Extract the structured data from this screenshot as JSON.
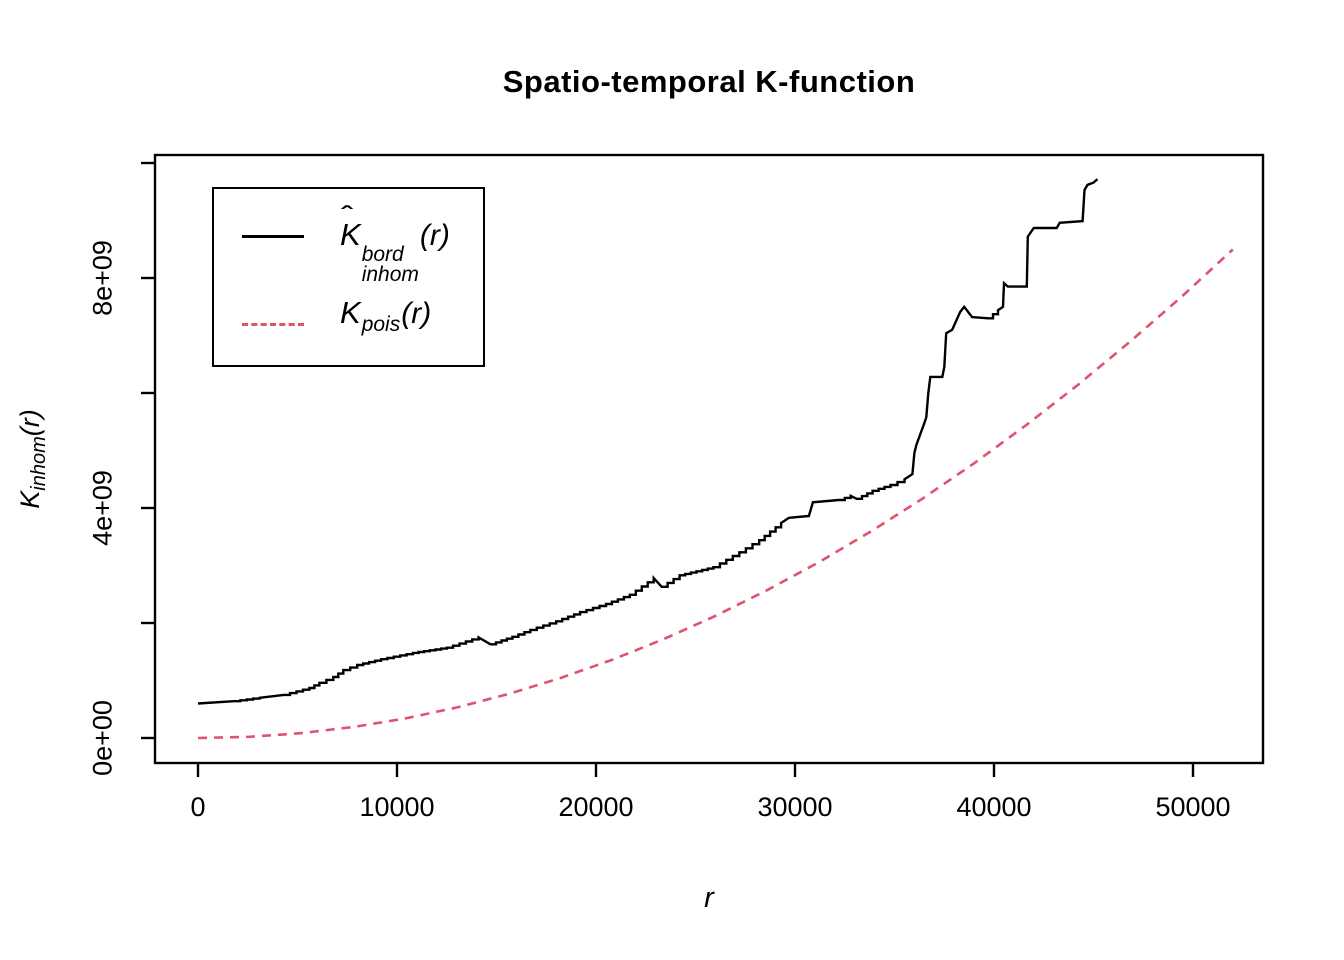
{
  "title": "Spatio-temporal K-function",
  "axes": {
    "x": {
      "label": "r",
      "ticks": [
        {
          "value": 0,
          "label": "0"
        },
        {
          "value": 10000,
          "label": "10000"
        },
        {
          "value": 20000,
          "label": "20000"
        },
        {
          "value": 30000,
          "label": "30000"
        },
        {
          "value": 40000,
          "label": "40000"
        },
        {
          "value": 50000,
          "label": "50000"
        }
      ]
    },
    "y": {
      "label_main": "K",
      "label_sub": "inhom",
      "label_arg": "(r)",
      "ticks": [
        {
          "value": 0,
          "label": "0e+00"
        },
        {
          "value": 2000000000,
          "label": ""
        },
        {
          "value": 4000000000,
          "label": "4e+09"
        },
        {
          "value": 6000000000,
          "label": ""
        },
        {
          "value": 8000000000,
          "label": "8e+09"
        },
        {
          "value": 10000000000,
          "label": ""
        }
      ]
    }
  },
  "legend": {
    "items": [
      {
        "name": "khat-bord-inhom",
        "line": "solid",
        "color": "#000000",
        "hat": "ˆ",
        "main": "K",
        "sup": "bord",
        "sub": "inhom",
        "arg": "(r)"
      },
      {
        "name": "k-pois",
        "line": "dashed",
        "color": "#DF536B",
        "main": "K",
        "sub": "pois",
        "arg": "(r)"
      }
    ]
  },
  "colors": {
    "estimate": "#000000",
    "poisson": "#DF536B",
    "background": "#FFFFFF",
    "axis": "#000000"
  },
  "chart_data": {
    "type": "line",
    "title": "Spatio-temporal K-function",
    "xlabel": "r",
    "ylabel": "K_inhom(r)",
    "xlim": [
      0,
      53500
    ],
    "ylim": [
      -430000000,
      10140000000
    ],
    "grid": false,
    "legend_position": "top-left",
    "x_ticks": [
      0,
      10000,
      20000,
      30000,
      40000,
      50000
    ],
    "y_ticks": [
      0,
      2000000000,
      4000000000,
      6000000000,
      8000000000,
      10000000000
    ],
    "series": [
      {
        "name": "Khat_bord_inhom(r)",
        "style": "step",
        "line": "solid",
        "color": "#000000",
        "r": [
          0,
          1800,
          3100,
          4300,
          5600,
          6100,
          6800,
          7300,
          8000,
          9200,
          10800,
          12500,
          14100,
          14700,
          15800,
          16700,
          18000,
          19200,
          20500,
          21700,
          22900,
          23300,
          24200,
          25900,
          27200,
          28200,
          29300,
          29700,
          30700,
          30900,
          32200,
          32800,
          33100,
          33900,
          34800,
          35500,
          35900,
          36000,
          36100,
          36500,
          36600,
          36700,
          36800,
          37400,
          37500,
          37600,
          37900,
          38300,
          38500,
          38900,
          39700,
          40200,
          40450,
          40500,
          40700,
          41650,
          41700,
          42000,
          43150,
          43300,
          44450,
          44550,
          44700,
          45000,
          45200
        ],
        "K": [
          600000000.0,
          640000000.0,
          700000000.0,
          750000000.0,
          870000000.0,
          960000000.0,
          1060000000.0,
          1180000000.0,
          1270000000.0,
          1370000000.0,
          1480000000.0,
          1570000000.0,
          1750000000.0,
          1630000000.0,
          1760000000.0,
          1880000000.0,
          2030000000.0,
          2190000000.0,
          2330000000.0,
          2490000000.0,
          2780000000.0,
          2630000000.0,
          2830000000.0,
          2970000000.0,
          3230000000.0,
          3440000000.0,
          3740000000.0,
          3830000000.0,
          3860000000.0,
          4100000000.0,
          4140000000.0,
          4210000000.0,
          4160000000.0,
          4300000000.0,
          4400000000.0,
          4500000000.0,
          4590000000.0,
          4960000000.0,
          5100000000.0,
          5480000000.0,
          5580000000.0,
          6000000000.0,
          6280000000.0,
          6280000000.0,
          6450000000.0,
          7040000000.0,
          7100000000.0,
          7410000000.0,
          7500000000.0,
          7320000000.0,
          7300000000.0,
          7440000000.0,
          7500000000.0,
          7910000000.0,
          7850000000.0,
          7850000000.0,
          8720000000.0,
          8870000000.0,
          8870000000.0,
          8960000000.0,
          8990000000.0,
          9530000000.0,
          9620000000.0,
          9660000000.0,
          9720000000.0
        ]
      },
      {
        "name": "K_pois(r)",
        "style": "curve",
        "line": "dashed",
        "color": "#DF536B",
        "formula": "pi*r^2",
        "r": [
          0,
          2600,
          5200,
          7800,
          10400,
          13000,
          15600,
          18200,
          20800,
          23400,
          26000,
          28600,
          31200,
          33800,
          36400,
          39000,
          41600,
          44200,
          46800,
          49400,
          52000
        ],
        "K": [
          0,
          21240000.0,
          84950000.0,
          191100000.0,
          339800000.0,
          530900000.0,
          764500000.0,
          1041000000.0,
          1359000000.0,
          1720000000.0,
          2124000000.0,
          2570000000.0,
          3058000000.0,
          3589000000.0,
          4162000000.0,
          4778000000.0,
          5437000000.0,
          6138000000.0,
          6881000000.0,
          7666000000.0,
          8495000000.0
        ]
      }
    ]
  }
}
